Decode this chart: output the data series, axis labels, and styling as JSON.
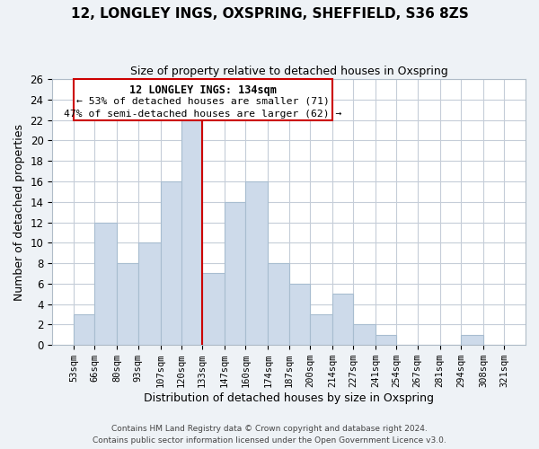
{
  "title": "12, LONGLEY INGS, OXSPRING, SHEFFIELD, S36 8ZS",
  "subtitle": "Size of property relative to detached houses in Oxspring",
  "xlabel": "Distribution of detached houses by size in Oxspring",
  "ylabel": "Number of detached properties",
  "bar_color": "#cddaea",
  "bar_edge_color": "#a8bdd0",
  "vline_color": "#cc0000",
  "vline_x": 133,
  "annotation_title": "12 LONGLEY INGS: 134sqm",
  "annotation_line1": "← 53% of detached houses are smaller (71)",
  "annotation_line2": "47% of semi-detached houses are larger (62) →",
  "bins": [
    53,
    66,
    80,
    93,
    107,
    120,
    133,
    147,
    160,
    174,
    187,
    200,
    214,
    227,
    241,
    254,
    267,
    281,
    294,
    308,
    321
  ],
  "counts": [
    3,
    12,
    8,
    10,
    16,
    22,
    7,
    14,
    16,
    8,
    6,
    3,
    5,
    2,
    1,
    0,
    0,
    0,
    1,
    0
  ],
  "tick_labels": [
    "53sqm",
    "66sqm",
    "80sqm",
    "93sqm",
    "107sqm",
    "120sqm",
    "133sqm",
    "147sqm",
    "160sqm",
    "174sqm",
    "187sqm",
    "200sqm",
    "214sqm",
    "227sqm",
    "241sqm",
    "254sqm",
    "267sqm",
    "281sqm",
    "294sqm",
    "308sqm",
    "321sqm"
  ],
  "ylim": [
    0,
    26
  ],
  "yticks": [
    0,
    2,
    4,
    6,
    8,
    10,
    12,
    14,
    16,
    18,
    20,
    22,
    24,
    26
  ],
  "footer1": "Contains HM Land Registry data © Crown copyright and database right 2024.",
  "footer2": "Contains public sector information licensed under the Open Government Licence v3.0.",
  "background_color": "#eef2f6",
  "plot_background": "#ffffff",
  "grid_color": "#c5cdd8"
}
